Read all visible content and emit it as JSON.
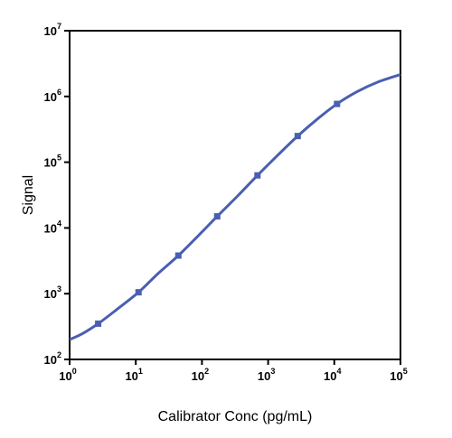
{
  "chart_data": {
    "type": "line",
    "xlabel": "Calibrator Conc (pg/mL)",
    "ylabel": "Signal",
    "x_scale": "log",
    "y_scale": "log",
    "xlim": [
      1,
      100000
    ],
    "ylim": [
      100,
      10000000
    ],
    "x_ticks": [
      {
        "base": "10",
        "exp": "0"
      },
      {
        "base": "10",
        "exp": "1"
      },
      {
        "base": "10",
        "exp": "2"
      },
      {
        "base": "10",
        "exp": "3"
      },
      {
        "base": "10",
        "exp": "4"
      },
      {
        "base": "10",
        "exp": "5"
      }
    ],
    "y_ticks": [
      {
        "base": "10",
        "exp": "2"
      },
      {
        "base": "10",
        "exp": "3"
      },
      {
        "base": "10",
        "exp": "4"
      },
      {
        "base": "10",
        "exp": "5"
      },
      {
        "base": "10",
        "exp": "6"
      },
      {
        "base": "10",
        "exp": "7"
      }
    ],
    "grid": false,
    "legend": "none",
    "series": [
      {
        "color": "#4a5fb0",
        "marker": "square",
        "points": [
          {
            "x": 2.7,
            "y": 350
          },
          {
            "x": 11,
            "y": 1050
          },
          {
            "x": 44,
            "y": 3800
          },
          {
            "x": 170,
            "y": 15000
          },
          {
            "x": 690,
            "y": 63000
          },
          {
            "x": 2800,
            "y": 250000
          },
          {
            "x": 11000,
            "y": 770000
          }
        ],
        "fit_curve": [
          {
            "x": 1,
            "y": 200
          },
          {
            "x": 1.6,
            "y": 250
          },
          {
            "x": 2.7,
            "y": 350
          },
          {
            "x": 5,
            "y": 560
          },
          {
            "x": 11,
            "y": 1050
          },
          {
            "x": 22,
            "y": 2050
          },
          {
            "x": 44,
            "y": 3800
          },
          {
            "x": 90,
            "y": 7800
          },
          {
            "x": 170,
            "y": 15000
          },
          {
            "x": 350,
            "y": 31000
          },
          {
            "x": 690,
            "y": 63000
          },
          {
            "x": 1400,
            "y": 128000
          },
          {
            "x": 2800,
            "y": 250000
          },
          {
            "x": 5500,
            "y": 450000
          },
          {
            "x": 11000,
            "y": 770000
          },
          {
            "x": 22000,
            "y": 1180000
          },
          {
            "x": 45000,
            "y": 1650000
          },
          {
            "x": 100000,
            "y": 2150000
          }
        ]
      }
    ]
  }
}
